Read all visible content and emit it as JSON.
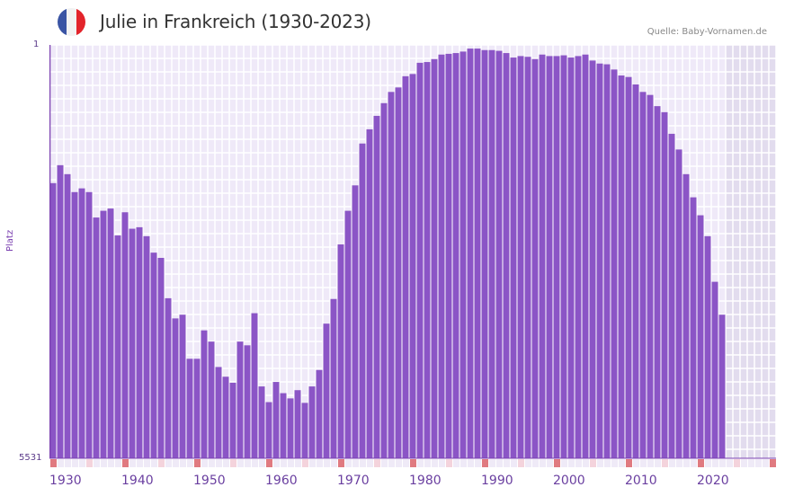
{
  "header": {
    "title": "Julie in Frankreich (1930-2023)",
    "source": "Quelle: Baby-Vornamen.de",
    "flag_colors": [
      "#3a54a4",
      "#f2f2f2",
      "#e3242b"
    ]
  },
  "axis": {
    "y_label": "Platz",
    "y_top": "1",
    "y_bottom": "5531",
    "x_labels": [
      "1930",
      "1940",
      "1950",
      "1960",
      "1970",
      "1980",
      "1990",
      "2000",
      "2010",
      "2020"
    ]
  },
  "colors": {
    "bar": "#8b55c6",
    "grid_bg": "#efe9f8",
    "future_bg": "#e2dcee",
    "axis": "#7a3fb0",
    "decade_tick": "#e07a80",
    "half_tick": "#f4d3dc"
  },
  "chart_data": {
    "type": "bar",
    "title": "Julie in Frankreich (1930-2023)",
    "xlabel": "",
    "ylabel": "Platz",
    "y_inverted": true,
    "ylim": [
      5531,
      1
    ],
    "xlim": [
      1930,
      2030
    ],
    "source": "Quelle: Baby-Vornamen.de",
    "x": [
      1930,
      1931,
      1932,
      1933,
      1934,
      1935,
      1936,
      1937,
      1938,
      1939,
      1940,
      1941,
      1942,
      1943,
      1944,
      1945,
      1946,
      1947,
      1948,
      1949,
      1950,
      1951,
      1952,
      1953,
      1954,
      1955,
      1956,
      1957,
      1958,
      1959,
      1960,
      1961,
      1962,
      1963,
      1964,
      1965,
      1966,
      1967,
      1968,
      1969,
      1970,
      1971,
      1972,
      1973,
      1974,
      1975,
      1976,
      1977,
      1978,
      1979,
      1980,
      1981,
      1982,
      1983,
      1984,
      1985,
      1986,
      1987,
      1988,
      1989,
      1990,
      1991,
      1992,
      1993,
      1994,
      1995,
      1996,
      1997,
      1998,
      1999,
      2000,
      2001,
      2002,
      2003,
      2004,
      2005,
      2006,
      2007,
      2008,
      2009,
      2010,
      2011,
      2012,
      2013,
      2014,
      2015,
      2016,
      2017,
      2018,
      2019,
      2020,
      2021,
      2022,
      2023
    ],
    "values": [
      1850,
      1610,
      1730,
      1970,
      1920,
      1970,
      2310,
      2220,
      2190,
      2550,
      2240,
      2460,
      2440,
      2560,
      2780,
      2850,
      3390,
      3660,
      3610,
      4200,
      4200,
      3820,
      3970,
      4310,
      4440,
      4520,
      3970,
      4020,
      3590,
      4570,
      4780,
      4510,
      4660,
      4730,
      4620,
      4790,
      4570,
      4350,
      3730,
      3400,
      2670,
      2220,
      1880,
      1320,
      1130,
      950,
      780,
      630,
      570,
      420,
      390,
      240,
      230,
      190,
      130,
      120,
      110,
      90,
      50,
      50,
      70,
      70,
      80,
      110,
      170,
      150,
      160,
      190,
      130,
      150,
      150,
      140,
      170,
      150,
      130,
      210,
      250,
      260,
      330,
      410,
      430,
      530,
      630,
      670,
      820,
      900,
      1190,
      1400,
      1730,
      2040,
      2280,
      2560,
      3170,
      3610
    ]
  }
}
